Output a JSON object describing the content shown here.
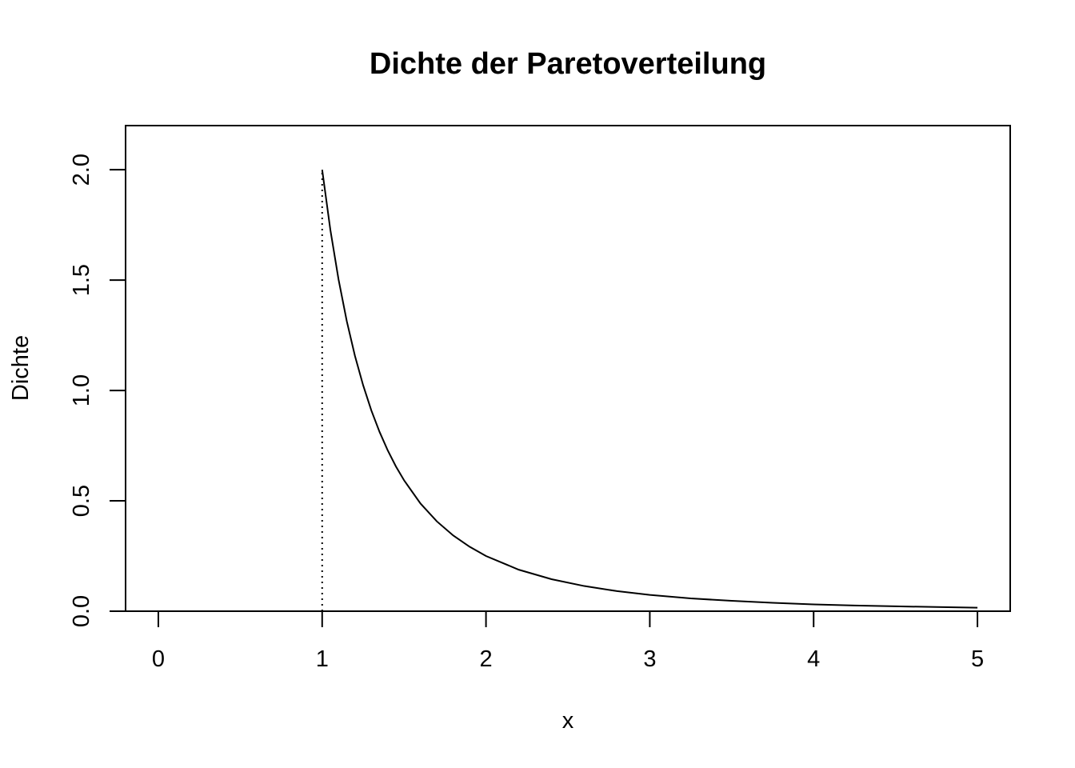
{
  "chart_data": {
    "type": "line",
    "title": "Dichte der Paretoverteilung",
    "xlabel": "x",
    "ylabel": "Dichte",
    "xlim": [
      -0.2,
      5.2
    ],
    "ylim": [
      0,
      2.2
    ],
    "x_ticks": [
      0,
      1,
      2,
      3,
      4,
      5
    ],
    "x_tick_labels": [
      "0",
      "1",
      "2",
      "3",
      "4",
      "5"
    ],
    "y_ticks": [
      0,
      0.5,
      1,
      1.5,
      2
    ],
    "y_tick_labels": [
      "0.0",
      "0.5",
      "1.0",
      "1.5",
      "2.0"
    ],
    "grid": false,
    "series": [
      {
        "style": "solid",
        "x": [
          -0.2,
          1
        ],
        "y": [
          0,
          0
        ]
      },
      {
        "style": "solid",
        "x": [
          1.0,
          1.05,
          1.1,
          1.15,
          1.2,
          1.25,
          1.3,
          1.35,
          1.4,
          1.45,
          1.5,
          1.6,
          1.7,
          1.8,
          1.9,
          2.0,
          2.2,
          2.4,
          2.6,
          2.8,
          3.0,
          3.25,
          3.5,
          3.75,
          4.0,
          4.25,
          4.5,
          4.75,
          5.0
        ],
        "y": [
          2.0,
          1.728,
          1.503,
          1.315,
          1.157,
          1.024,
          0.91,
          0.813,
          0.729,
          0.656,
          0.593,
          0.488,
          0.407,
          0.343,
          0.292,
          0.25,
          0.188,
          0.145,
          0.114,
          0.091,
          0.074,
          0.058,
          0.047,
          0.038,
          0.031,
          0.026,
          0.022,
          0.019,
          0.016
        ]
      },
      {
        "style": "dotted",
        "x": [
          1,
          1
        ],
        "y": [
          0,
          2
        ]
      }
    ]
  }
}
